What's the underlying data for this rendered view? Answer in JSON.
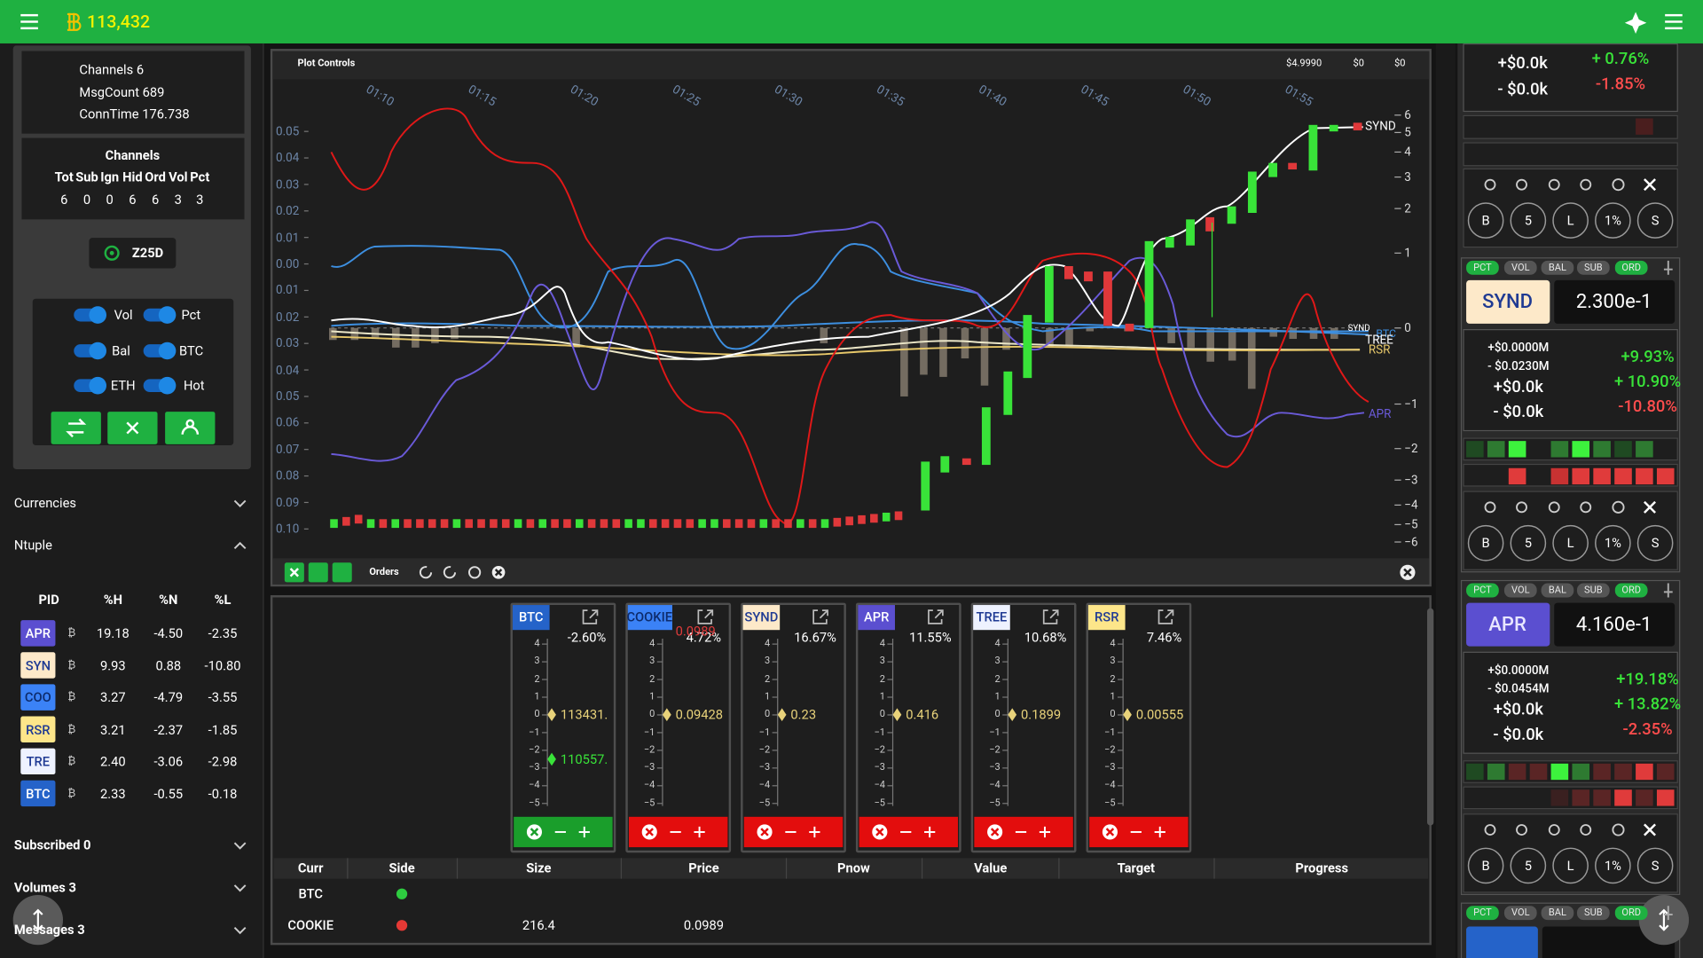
{
  "header": {
    "balance": "113,432"
  },
  "status": {
    "lines": [
      "Channels  6",
      "MsgCount 689",
      "ConnTime 176.738"
    ]
  },
  "channels": {
    "title": "Channels",
    "headers": [
      "Tot",
      "Sub",
      "Ign",
      "Hid",
      "Ord",
      "Vol",
      "Pct"
    ],
    "values": [
      6,
      0,
      0,
      6,
      6,
      3,
      3
    ]
  },
  "feed_button": "Z25D",
  "toggles": [
    "Vol",
    "Pct",
    "Bal",
    "BTC",
    "ETH",
    "Hot"
  ],
  "sections": {
    "currencies": "Currencies",
    "ntuple": "Ntuple"
  },
  "ntuple": {
    "headers": [
      "PID",
      "%H",
      "%N",
      "%L"
    ],
    "unit": "₿",
    "rows": [
      {
        "pid": "APR",
        "h": "19.18",
        "n": "-4.50",
        "l": "-2.35",
        "bg": "#5b4fd0",
        "fg": "#ffffff"
      },
      {
        "pid": "SYN",
        "h": "9.93",
        "n": "0.88",
        "l": "-10.80",
        "bg": "#fde9c9",
        "fg": "#1f3a93"
      },
      {
        "pid": "COO",
        "h": "3.27",
        "n": "-4.79",
        "l": "-3.55",
        "bg": "#3b82f6",
        "fg": "#0d2b6b"
      },
      {
        "pid": "RSR",
        "h": "3.21",
        "n": "-2.37",
        "l": "-1.85",
        "bg": "#fde68a",
        "fg": "#1f3a93"
      },
      {
        "pid": "TRE",
        "h": "2.40",
        "n": "-3.06",
        "l": "-2.98",
        "bg": "#eef2ff",
        "fg": "#1f3a93"
      },
      {
        "pid": "BTC",
        "h": "2.33",
        "n": "-0.55",
        "l": "-0.18",
        "bg": "#2563c9",
        "fg": "#ffffff"
      }
    ]
  },
  "footer_sections": [
    "Subscribed 0",
    "Volumes 3",
    "Messages 3"
  ],
  "plot": {
    "title": "Plot Controls",
    "stats": [
      "$4.9990",
      "$0",
      "$0"
    ],
    "x_labels": [
      "01:10",
      "01:15",
      "01:20",
      "01:25",
      "01:30",
      "01:35",
      "01:40",
      "01:45",
      "01:50",
      "01:55"
    ],
    "y_left": [
      "0.05",
      "0.04",
      "0.03",
      "0.02",
      "0.01",
      "0.00",
      "0.01",
      "0.02",
      "0.03",
      "0.04",
      "0.05",
      "0.06",
      "0.07",
      "0.08",
      "0.09",
      "0.10"
    ],
    "y_right": [
      "6",
      "5",
      "4",
      "3",
      "2",
      "1",
      "0",
      "−1",
      "−2",
      "−3",
      "−4",
      "−5",
      "−6"
    ],
    "series_labels": [
      "SYND",
      "SYND",
      "BTC",
      "TREE",
      "RSR",
      "APR"
    ],
    "toolbar": "Orders"
  },
  "orders": {
    "scale": [
      "4",
      "3",
      "2",
      "1",
      "0",
      "−1",
      "−2",
      "−3",
      "−4",
      "−5"
    ],
    "cards": [
      {
        "sym": "BTC",
        "pct": "-2.60%",
        "price": "113431.",
        "second": "110557.",
        "bg": "#2563c9",
        "fg": "#ffffff",
        "bar": "#1a9e2b"
      },
      {
        "sym": "COOKIE",
        "pct": "4.72%",
        "price": "0.09428",
        "alt": "0.0989",
        "bg": "#3b82f6",
        "fg": "#0d2b6b",
        "bar": "#e30d0d"
      },
      {
        "sym": "SYND",
        "pct": "16.67%",
        "price": "0.23",
        "bg": "#fde9c9",
        "fg": "#1f3a93",
        "bar": "#e30d0d"
      },
      {
        "sym": "APR",
        "pct": "11.55%",
        "price": "0.416",
        "bg": "#5b4fd0",
        "fg": "#ffffff",
        "bar": "#e30d0d"
      },
      {
        "sym": "TREE",
        "pct": "10.68%",
        "price": "0.1899",
        "bg": "#eef2ff",
        "fg": "#1f3a93",
        "bar": "#e30d0d"
      },
      {
        "sym": "RSR",
        "pct": "7.46%",
        "price": "0.00555",
        "bg": "#fde68a",
        "fg": "#1f3a93",
        "bar": "#e30d0d"
      }
    ]
  },
  "positions": {
    "headers": [
      "Curr",
      "Side",
      "Size",
      "Price",
      "Pnow",
      "Value",
      "Target",
      "Progress"
    ],
    "rows": [
      {
        "curr": "BTC",
        "side_color": "#2ecc40"
      },
      {
        "curr": "COOKIE",
        "side_color": "#e53935",
        "size": "216.4",
        "price": "0.0989"
      }
    ]
  },
  "right_panel": {
    "tags": [
      "PCT",
      "VOL",
      "BAL",
      "SUB",
      "ORD"
    ],
    "buttons": [
      "B",
      "5",
      "L",
      "1%",
      "S"
    ],
    "top": {
      "lines": [
        "+$0.0k",
        "- $0.0k"
      ],
      "pcts": [
        "+ 0.76%",
        "-1.85%"
      ]
    },
    "cards": [
      {
        "name": "SYND",
        "price": "2.300e-1",
        "lines": [
          "+$0.0000M",
          "- $0.0230M",
          "+$0.0k",
          "- $0.0k"
        ],
        "pcts": [
          "+9.93%",
          "+ 10.90%",
          "-10.80%"
        ],
        "bg": "#fde9c9",
        "fg": "#1f3a93"
      },
      {
        "name": "APR",
        "price": "4.160e-1",
        "lines": [
          "+$0.0000M",
          "- $0.0454M",
          "+$0.0k",
          "- $0.0k"
        ],
        "pcts": [
          "+19.18%",
          "+ 13.82%",
          "-2.35%"
        ],
        "bg": "#5b4fd0",
        "fg": "#e8e6ff"
      }
    ]
  }
}
